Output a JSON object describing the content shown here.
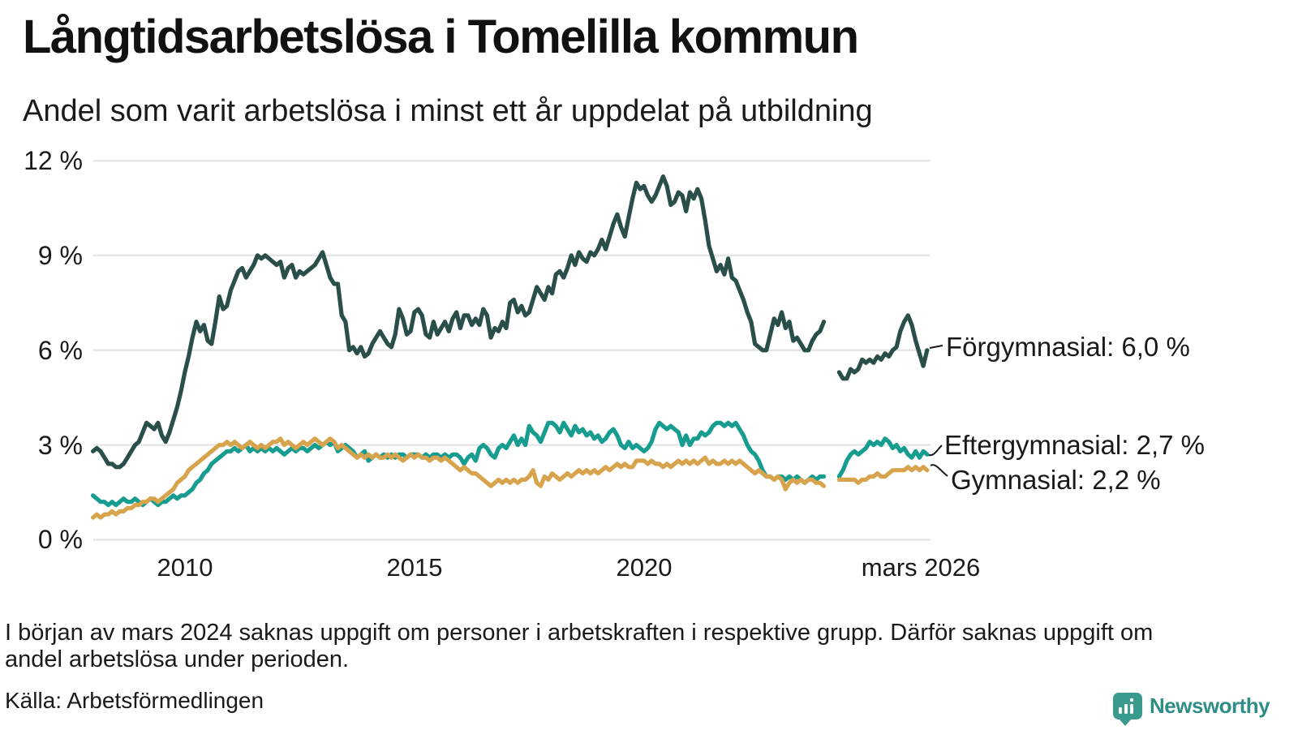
{
  "header": {
    "title": "Långtidsarbetslösa i Tomelilla kommun",
    "subtitle": "Andel som varit arbetslösa i minst ett år uppdelat på utbildning"
  },
  "chart_data": {
    "type": "line",
    "title": "Långtidsarbetslösa i Tomelilla kommun",
    "subtitle": "Andel som varit arbetslösa i minst ett år uppdelat på utbildning",
    "unit": "%",
    "frequency": "monthly",
    "x_start": "2008-01",
    "x_end": "2026-03",
    "missing_months": [
      "2024-01",
      "2024-02",
      "2024-03"
    ],
    "ylim": [
      0,
      12
    ],
    "y_ticks": [
      0,
      3,
      6,
      9,
      12
    ],
    "y_tick_labels": [
      "0 %",
      "3 %",
      "6 %",
      "9 %",
      "12 %"
    ],
    "x_tick_labels": [
      "2010",
      "2015",
      "2020",
      "mars 2026"
    ],
    "grid": "horizontal",
    "legend_position": "right-end-labels",
    "series": [
      {
        "name": "Eftergymnasial",
        "end_label": "Eftergymnasial: 2,7 %",
        "last_value": 2.7,
        "color": "#169d8f",
        "values": [
          1.4,
          1.3,
          1.2,
          1.2,
          1.1,
          1.2,
          1.1,
          1.2,
          1.3,
          1.2,
          1.2,
          1.3,
          1.2,
          1.1,
          1.2,
          1.3,
          1.2,
          1.1,
          1.2,
          1.2,
          1.3,
          1.4,
          1.3,
          1.4,
          1.4,
          1.5,
          1.6,
          1.8,
          1.9,
          2.1,
          2.2,
          2.4,
          2.5,
          2.6,
          2.7,
          2.8,
          2.8,
          2.9,
          2.8,
          2.9,
          3.0,
          2.8,
          2.9,
          2.8,
          2.9,
          2.8,
          2.9,
          2.8,
          2.9,
          2.8,
          2.7,
          2.8,
          2.9,
          2.8,
          2.9,
          2.9,
          2.8,
          2.9,
          3.0,
          2.9,
          3.0,
          3.1,
          3.0,
          3.1,
          2.8,
          2.9,
          3.0,
          2.9,
          2.8,
          2.6,
          2.7,
          2.8,
          2.5,
          2.6,
          2.7,
          2.6,
          2.7,
          2.6,
          2.7,
          2.6,
          2.7,
          2.7,
          2.6,
          2.7,
          2.7,
          2.7,
          2.6,
          2.7,
          2.6,
          2.7,
          2.7,
          2.6,
          2.7,
          2.6,
          2.7,
          2.7,
          2.6,
          2.4,
          2.6,
          2.7,
          2.5,
          2.9,
          3.0,
          2.9,
          2.7,
          2.6,
          2.9,
          3.0,
          2.9,
          3.1,
          3.3,
          3.0,
          3.2,
          3.0,
          3.6,
          3.4,
          3.3,
          3.1,
          3.4,
          3.7,
          3.7,
          3.6,
          3.4,
          3.7,
          3.5,
          3.3,
          3.6,
          3.4,
          3.5,
          3.3,
          3.4,
          3.2,
          3.3,
          3.1,
          3.2,
          3.4,
          3.5,
          3.3,
          3.0,
          2.9,
          3.1,
          2.9,
          3.0,
          2.9,
          2.8,
          2.9,
          3.1,
          3.5,
          3.7,
          3.6,
          3.5,
          3.6,
          3.5,
          3.4,
          3.0,
          3.3,
          3.0,
          3.2,
          3.2,
          3.4,
          3.3,
          3.4,
          3.6,
          3.7,
          3.7,
          3.6,
          3.7,
          3.6,
          3.7,
          3.5,
          3.3,
          3.0,
          2.8,
          2.7,
          2.5,
          2.2,
          2.0,
          2.0,
          1.9,
          2.0,
          2.0,
          1.9,
          2.0,
          1.9,
          2.0,
          1.9,
          1.8,
          1.9,
          2.0,
          1.9,
          2.0,
          2.0,
          null,
          null,
          null,
          2.0,
          2.2,
          2.5,
          2.7,
          2.8,
          2.7,
          2.8,
          2.9,
          3.1,
          3.0,
          3.1,
          3.0,
          3.2,
          3.1,
          2.9,
          3.0,
          2.8,
          2.9,
          2.7,
          2.6,
          2.8,
          2.6,
          2.8,
          2.7
        ]
      },
      {
        "name": "Gymnasial",
        "end_label": "Gymnasial: 2,2 %",
        "last_value": 2.2,
        "color": "#d7a44d",
        "values": [
          0.7,
          0.8,
          0.7,
          0.8,
          0.8,
          0.9,
          0.8,
          0.9,
          0.9,
          1.0,
          1.0,
          1.1,
          1.1,
          1.2,
          1.2,
          1.3,
          1.3,
          1.2,
          1.3,
          1.4,
          1.5,
          1.6,
          1.8,
          1.9,
          2.0,
          2.2,
          2.3,
          2.4,
          2.5,
          2.6,
          2.7,
          2.8,
          2.9,
          3.0,
          3.0,
          3.1,
          3.0,
          3.1,
          3.0,
          2.9,
          3.0,
          3.1,
          3.0,
          2.9,
          3.0,
          2.9,
          3.0,
          3.1,
          3.1,
          3.2,
          3.0,
          3.1,
          3.0,
          2.9,
          3.0,
          3.1,
          3.0,
          3.1,
          3.2,
          3.1,
          3.0,
          3.1,
          3.2,
          3.1,
          2.9,
          3.0,
          2.9,
          2.8,
          2.7,
          2.6,
          2.7,
          2.6,
          2.7,
          2.6,
          2.7,
          2.6,
          2.6,
          2.7,
          2.6,
          2.7,
          2.6,
          2.5,
          2.6,
          2.7,
          2.6,
          2.7,
          2.6,
          2.6,
          2.5,
          2.6,
          2.6,
          2.5,
          2.6,
          2.5,
          2.4,
          2.3,
          2.2,
          2.3,
          2.2,
          2.1,
          2.1,
          2.0,
          1.9,
          1.8,
          1.7,
          1.8,
          1.9,
          1.8,
          1.9,
          1.8,
          1.9,
          1.8,
          1.9,
          1.9,
          2.0,
          2.2,
          1.8,
          1.7,
          2.0,
          1.9,
          2.1,
          2.0,
          1.9,
          2.0,
          2.1,
          2.0,
          2.1,
          2.2,
          2.1,
          2.2,
          2.1,
          2.2,
          2.1,
          2.2,
          2.3,
          2.2,
          2.3,
          2.4,
          2.3,
          2.4,
          2.3,
          2.3,
          2.5,
          2.5,
          2.5,
          2.4,
          2.5,
          2.4,
          2.4,
          2.3,
          2.4,
          2.3,
          2.4,
          2.5,
          2.4,
          2.5,
          2.4,
          2.5,
          2.4,
          2.5,
          2.6,
          2.4,
          2.5,
          2.4,
          2.4,
          2.5,
          2.4,
          2.5,
          2.4,
          2.5,
          2.4,
          2.3,
          2.2,
          2.1,
          2.2,
          2.1,
          2.0,
          2.0,
          1.9,
          2.0,
          1.9,
          1.6,
          1.8,
          1.9,
          1.8,
          1.9,
          1.8,
          1.9,
          1.9,
          1.8,
          1.8,
          1.7,
          null,
          null,
          null,
          1.9,
          1.9,
          1.9,
          1.9,
          1.9,
          1.8,
          1.9,
          1.9,
          2.0,
          2.0,
          2.1,
          2.0,
          2.0,
          2.1,
          2.2,
          2.2,
          2.2,
          2.2,
          2.3,
          2.2,
          2.3,
          2.2,
          2.3,
          2.2
        ]
      },
      {
        "name": "Förgymnasial",
        "end_label": "Förgymnasial: 6,0 %",
        "last_value": 6.0,
        "color": "#2a4f4a",
        "values": [
          2.8,
          2.9,
          2.8,
          2.6,
          2.4,
          2.4,
          2.3,
          2.3,
          2.4,
          2.6,
          2.8,
          3.0,
          3.1,
          3.4,
          3.7,
          3.6,
          3.5,
          3.7,
          3.3,
          3.1,
          3.4,
          3.8,
          4.2,
          4.7,
          5.3,
          5.8,
          6.4,
          6.9,
          6.6,
          6.8,
          6.3,
          6.2,
          6.9,
          7.7,
          7.3,
          7.4,
          7.9,
          8.2,
          8.5,
          8.6,
          8.3,
          8.5,
          8.7,
          9.0,
          8.9,
          9.0,
          8.9,
          8.8,
          8.7,
          8.8,
          8.3,
          8.6,
          8.7,
          8.3,
          8.5,
          8.4,
          8.5,
          8.6,
          8.7,
          8.9,
          9.1,
          8.7,
          8.3,
          8.1,
          8.1,
          7.1,
          6.9,
          6.0,
          6.1,
          5.9,
          6.1,
          5.8,
          5.9,
          6.2,
          6.4,
          6.6,
          6.4,
          6.2,
          6.1,
          6.5,
          7.3,
          7.0,
          6.5,
          6.6,
          7.2,
          7.3,
          7.1,
          6.5,
          6.4,
          6.9,
          6.5,
          6.7,
          6.9,
          6.6,
          7.0,
          7.2,
          6.7,
          7.1,
          7.1,
          6.8,
          7.0,
          6.8,
          7.3,
          7.1,
          6.4,
          6.7,
          6.6,
          6.9,
          6.7,
          7.5,
          7.6,
          7.2,
          7.4,
          7.1,
          7.2,
          7.6,
          8.0,
          7.8,
          7.6,
          8.0,
          7.8,
          8.4,
          8.5,
          8.3,
          8.6,
          9.0,
          8.7,
          9.1,
          8.9,
          8.8,
          9.1,
          9.0,
          9.2,
          9.5,
          9.2,
          9.6,
          10.0,
          10.3,
          9.9,
          9.6,
          10.2,
          10.8,
          11.3,
          11.1,
          11.2,
          10.9,
          10.7,
          10.9,
          11.2,
          11.5,
          11.2,
          10.6,
          10.7,
          11.0,
          10.9,
          10.4,
          11.0,
          10.8,
          11.1,
          10.8,
          10.1,
          9.3,
          8.9,
          8.5,
          8.7,
          8.4,
          8.9,
          8.3,
          8.2,
          7.9,
          7.6,
          7.2,
          6.9,
          6.2,
          6.1,
          6.0,
          6.0,
          6.5,
          7.0,
          6.8,
          7.2,
          6.7,
          6.9,
          6.3,
          6.4,
          6.2,
          6.0,
          6.0,
          6.3,
          6.5,
          6.6,
          6.9,
          null,
          null,
          null,
          5.3,
          5.1,
          5.1,
          5.4,
          5.3,
          5.4,
          5.7,
          5.6,
          5.7,
          5.6,
          5.8,
          5.7,
          5.9,
          5.8,
          6.0,
          6.1,
          6.6,
          6.9,
          7.1,
          6.8,
          6.3,
          5.9,
          5.5,
          6.0
        ]
      }
    ]
  },
  "colors": {
    "forgymnasial": "#2a4f4a",
    "eftergymnasial": "#169d8f",
    "gymnasial": "#d7a44d",
    "gridline": "#e6e6e9",
    "brand_teal": "#3a9a8e"
  },
  "footer": {
    "note_lines": [
      "I början av mars 2024 saknas uppgift om personer i arbetskraften i respektive grupp. Därför saknas uppgift om",
      "andel arbetslösa under perioden."
    ],
    "source": "Källa: Arbetsförmedlingen",
    "brand": "Newsworthy"
  }
}
